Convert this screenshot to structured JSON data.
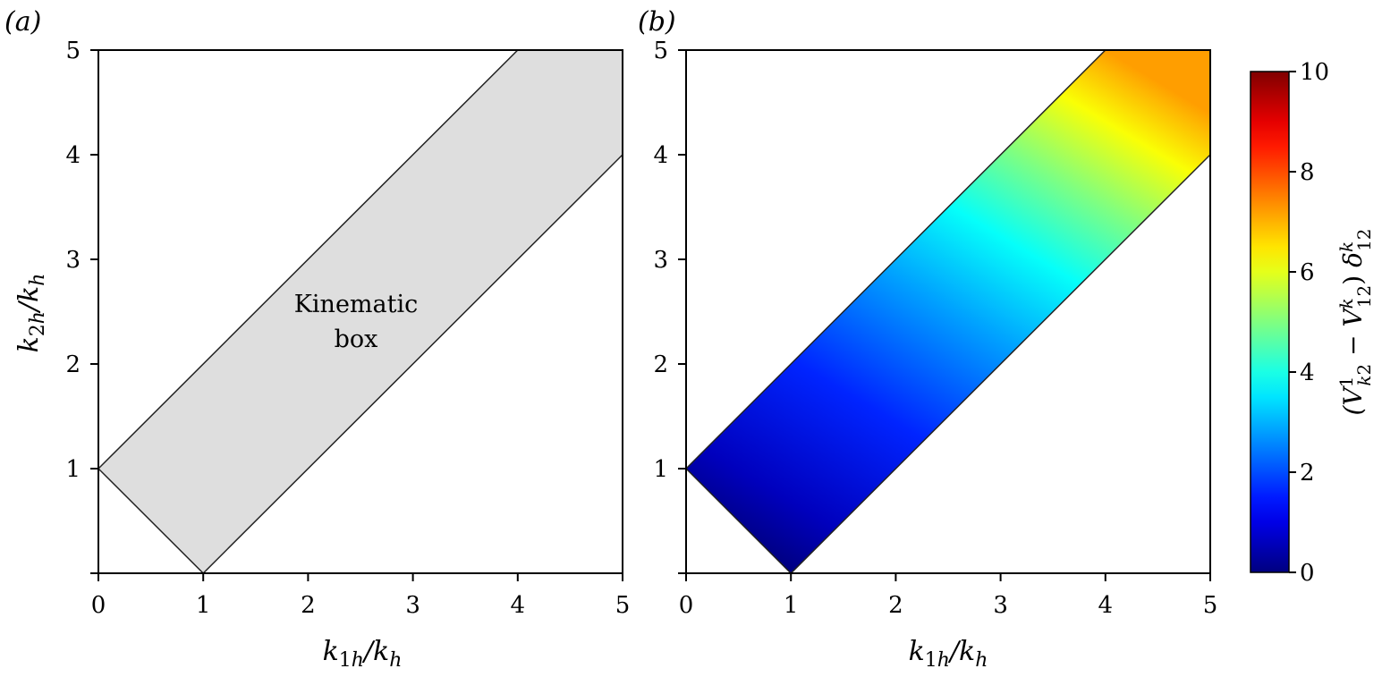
{
  "chart_data": [
    {
      "type": "area",
      "panel_label": "(a)",
      "xlabel": "k_1h / k_h",
      "ylabel": "k_2h / k_h",
      "xlim": [
        0,
        5
      ],
      "ylim": [
        0,
        5
      ],
      "x_ticks": [
        0,
        1,
        2,
        3,
        4,
        5
      ],
      "y_ticks": [
        1,
        2,
        3,
        4,
        5
      ],
      "region_polygon": [
        [
          0,
          1
        ],
        [
          1,
          0
        ],
        [
          5,
          4
        ],
        [
          5,
          5
        ],
        [
          4,
          5
        ]
      ],
      "region_color": "#dedede",
      "annotation": [
        "Kinematic",
        "box"
      ]
    },
    {
      "type": "heatmap",
      "panel_label": "(b)",
      "xlabel": "k_1h / k_h",
      "xlim": [
        0,
        5
      ],
      "ylim": [
        0,
        5
      ],
      "x_ticks": [
        0,
        1,
        2,
        3,
        4,
        5
      ],
      "y_ticks": [
        1,
        2,
        3,
        4,
        5
      ],
      "region_polygon": [
        [
          0,
          1
        ],
        [
          1,
          0
        ],
        [
          5,
          4
        ],
        [
          5,
          5
        ],
        [
          4,
          5
        ]
      ],
      "colorbar": {
        "label": "(V^1_k2 − V^k_12) δ^k_12",
        "range": [
          0,
          10
        ],
        "ticks": [
          0,
          2,
          4,
          6,
          8,
          10
        ],
        "colormap": "jet"
      },
      "field_samples": [
        {
          "x": 1,
          "y": 0,
          "value": 0
        },
        {
          "x": 0,
          "y": 1,
          "value": 0.5
        },
        {
          "x": 2,
          "y": 2,
          "value": 2
        },
        {
          "x": 3,
          "y": 3,
          "value": 3.5
        },
        {
          "x": 5,
          "y": 4,
          "value": 5
        },
        {
          "x": 4,
          "y": 4.6,
          "value": 6
        },
        {
          "x": 4,
          "y": 5,
          "value": 7.2
        },
        {
          "x": 5,
          "y": 5,
          "value": 6.5
        }
      ]
    }
  ]
}
